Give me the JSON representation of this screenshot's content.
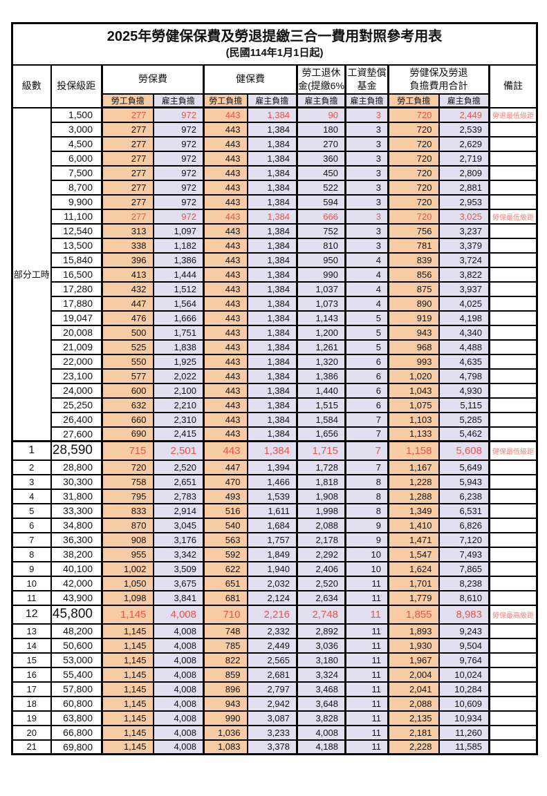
{
  "title": "2025年勞健保保費及勞退提繳三合一費用對照參考用表",
  "subtitle": "(民國114年1月1日起)",
  "colors": {
    "labor_bg": "#F7CBA3",
    "employer_bg": "#E1DFF0",
    "highlight_red": "#EE5349",
    "remark_red": "#F2837C",
    "border": "#000000"
  },
  "header": {
    "level": "級數",
    "bracket": "投保級距",
    "labor_ins": "勞保費",
    "health_ins": "健保費",
    "pension_line1": "勞工退休",
    "pension_line2": "金(提繳6%)",
    "wage_fund_line1": "工資墊償",
    "wage_fund_line2": "基金",
    "total_line1": "勞健保及勞退",
    "total_line2": "負擔費用合計",
    "remark": "備註",
    "labor_burden": "勞工負擔",
    "employer_burden": "雇主負擔"
  },
  "left_label": "部分工時",
  "rows": [
    {
      "c": [
        "",
        "1,500",
        "277",
        "972",
        "443",
        "1,384",
        "90",
        "3",
        "720",
        "2,449",
        "勞退最低級距"
      ],
      "f": "hl"
    },
    {
      "c": [
        "",
        "3,000",
        "277",
        "972",
        "443",
        "1,384",
        "180",
        "3",
        "720",
        "2,539",
        ""
      ],
      "f": ""
    },
    {
      "c": [
        "",
        "4,500",
        "277",
        "972",
        "443",
        "1,384",
        "270",
        "3",
        "720",
        "2,629",
        ""
      ],
      "f": ""
    },
    {
      "c": [
        "",
        "6,000",
        "277",
        "972",
        "443",
        "1,384",
        "360",
        "3",
        "720",
        "2,719",
        ""
      ],
      "f": ""
    },
    {
      "c": [
        "",
        "7,500",
        "277",
        "972",
        "443",
        "1,384",
        "450",
        "3",
        "720",
        "2,809",
        ""
      ],
      "f": ""
    },
    {
      "c": [
        "",
        "8,700",
        "277",
        "972",
        "443",
        "1,384",
        "522",
        "3",
        "720",
        "2,881",
        ""
      ],
      "f": ""
    },
    {
      "c": [
        "",
        "9,900",
        "277",
        "972",
        "443",
        "1,384",
        "594",
        "3",
        "720",
        "2,953",
        ""
      ],
      "f": ""
    },
    {
      "c": [
        "",
        "11,100",
        "277",
        "972",
        "443",
        "1,384",
        "666",
        "3",
        "720",
        "3,025",
        "勞保最低級距"
      ],
      "f": "hl"
    },
    {
      "c": [
        "",
        "12,540",
        "313",
        "1,097",
        "443",
        "1,384",
        "752",
        "3",
        "756",
        "3,237",
        ""
      ],
      "f": ""
    },
    {
      "c": [
        "",
        "13,500",
        "338",
        "1,182",
        "443",
        "1,384",
        "810",
        "3",
        "781",
        "3,379",
        ""
      ],
      "f": ""
    },
    {
      "c": [
        "",
        "15,840",
        "396",
        "1,386",
        "443",
        "1,384",
        "950",
        "4",
        "839",
        "3,724",
        ""
      ],
      "f": ""
    },
    {
      "c": [
        "",
        "16,500",
        "413",
        "1,444",
        "443",
        "1,384",
        "990",
        "4",
        "856",
        "3,822",
        ""
      ],
      "f": ""
    },
    {
      "c": [
        "",
        "17,280",
        "432",
        "1,512",
        "443",
        "1,384",
        "1,037",
        "4",
        "875",
        "3,937",
        ""
      ],
      "f": ""
    },
    {
      "c": [
        "",
        "17,880",
        "447",
        "1,564",
        "443",
        "1,384",
        "1,073",
        "4",
        "890",
        "4,025",
        ""
      ],
      "f": ""
    },
    {
      "c": [
        "",
        "19,047",
        "476",
        "1,666",
        "443",
        "1,384",
        "1,143",
        "5",
        "919",
        "4,198",
        ""
      ],
      "f": ""
    },
    {
      "c": [
        "",
        "20,008",
        "500",
        "1,751",
        "443",
        "1,384",
        "1,200",
        "5",
        "943",
        "4,340",
        ""
      ],
      "f": ""
    },
    {
      "c": [
        "",
        "21,009",
        "525",
        "1,838",
        "443",
        "1,384",
        "1,261",
        "5",
        "968",
        "4,488",
        ""
      ],
      "f": ""
    },
    {
      "c": [
        "",
        "22,000",
        "550",
        "1,925",
        "443",
        "1,384",
        "1,320",
        "6",
        "993",
        "4,635",
        ""
      ],
      "f": ""
    },
    {
      "c": [
        "",
        "23,100",
        "577",
        "2,022",
        "443",
        "1,384",
        "1,386",
        "6",
        "1,020",
        "4,798",
        ""
      ],
      "f": ""
    },
    {
      "c": [
        "",
        "24,000",
        "600",
        "2,100",
        "443",
        "1,384",
        "1,440",
        "6",
        "1,043",
        "4,930",
        ""
      ],
      "f": ""
    },
    {
      "c": [
        "",
        "25,250",
        "632",
        "2,210",
        "443",
        "1,384",
        "1,515",
        "6",
        "1,075",
        "5,115",
        ""
      ],
      "f": ""
    },
    {
      "c": [
        "",
        "26,400",
        "660",
        "2,310",
        "443",
        "1,384",
        "1,584",
        "7",
        "1,103",
        "5,285",
        ""
      ],
      "f": ""
    },
    {
      "c": [
        "",
        "27,600",
        "690",
        "2,415",
        "443",
        "1,384",
        "1,656",
        "7",
        "1,133",
        "5,462",
        ""
      ],
      "f": ""
    },
    {
      "c": [
        "1",
        "28,590",
        "715",
        "2,501",
        "443",
        "1,384",
        "1,715",
        "7",
        "1,158",
        "5,608",
        "健保最低級距"
      ],
      "f": "hl big thick"
    },
    {
      "c": [
        "2",
        "28,800",
        "720",
        "2,520",
        "447",
        "1,394",
        "1,728",
        "7",
        "1,167",
        "5,649",
        ""
      ],
      "f": ""
    },
    {
      "c": [
        "3",
        "30,300",
        "758",
        "2,651",
        "470",
        "1,466",
        "1,818",
        "8",
        "1,228",
        "5,943",
        ""
      ],
      "f": ""
    },
    {
      "c": [
        "4",
        "31,800",
        "795",
        "2,783",
        "493",
        "1,539",
        "1,908",
        "8",
        "1,288",
        "6,238",
        ""
      ],
      "f": ""
    },
    {
      "c": [
        "5",
        "33,300",
        "833",
        "2,914",
        "516",
        "1,611",
        "1,998",
        "8",
        "1,349",
        "6,531",
        ""
      ],
      "f": ""
    },
    {
      "c": [
        "6",
        "34,800",
        "870",
        "3,045",
        "540",
        "1,684",
        "2,088",
        "9",
        "1,410",
        "6,826",
        ""
      ],
      "f": ""
    },
    {
      "c": [
        "7",
        "36,300",
        "908",
        "3,176",
        "563",
        "1,757",
        "2,178",
        "9",
        "1,471",
        "7,120",
        ""
      ],
      "f": ""
    },
    {
      "c": [
        "8",
        "38,200",
        "955",
        "3,342",
        "592",
        "1,849",
        "2,292",
        "10",
        "1,547",
        "7,493",
        ""
      ],
      "f": ""
    },
    {
      "c": [
        "9",
        "40,100",
        "1,002",
        "3,509",
        "622",
        "1,940",
        "2,406",
        "10",
        "1,624",
        "7,865",
        ""
      ],
      "f": ""
    },
    {
      "c": [
        "10",
        "42,000",
        "1,050",
        "3,675",
        "651",
        "2,032",
        "2,520",
        "11",
        "1,701",
        "8,238",
        ""
      ],
      "f": ""
    },
    {
      "c": [
        "11",
        "43,900",
        "1,098",
        "3,841",
        "681",
        "2,124",
        "2,634",
        "11",
        "1,779",
        "8,610",
        ""
      ],
      "f": ""
    },
    {
      "c": [
        "12",
        "45,800",
        "1,145",
        "4,008",
        "710",
        "2,216",
        "2,748",
        "11",
        "1,855",
        "8,983",
        "勞保最高級距"
      ],
      "f": "hl big"
    },
    {
      "c": [
        "13",
        "48,200",
        "1,145",
        "4,008",
        "748",
        "2,332",
        "2,892",
        "11",
        "1,893",
        "9,243",
        ""
      ],
      "f": ""
    },
    {
      "c": [
        "14",
        "50,600",
        "1,145",
        "4,008",
        "785",
        "2,449",
        "3,036",
        "11",
        "1,930",
        "9,504",
        ""
      ],
      "f": ""
    },
    {
      "c": [
        "15",
        "53,000",
        "1,145",
        "4,008",
        "822",
        "2,565",
        "3,180",
        "11",
        "1,967",
        "9,764",
        ""
      ],
      "f": ""
    },
    {
      "c": [
        "16",
        "55,400",
        "1,145",
        "4,008",
        "859",
        "2,681",
        "3,324",
        "11",
        "2,004",
        "10,024",
        ""
      ],
      "f": ""
    },
    {
      "c": [
        "17",
        "57,800",
        "1,145",
        "4,008",
        "896",
        "2,797",
        "3,468",
        "11",
        "2,041",
        "10,284",
        ""
      ],
      "f": ""
    },
    {
      "c": [
        "18",
        "60,800",
        "1,145",
        "4,008",
        "943",
        "2,942",
        "3,648",
        "11",
        "2,088",
        "10,609",
        ""
      ],
      "f": ""
    },
    {
      "c": [
        "19",
        "63,800",
        "1,145",
        "4,008",
        "990",
        "3,087",
        "3,828",
        "11",
        "2,135",
        "10,934",
        ""
      ],
      "f": ""
    },
    {
      "c": [
        "20",
        "66,800",
        "1,145",
        "4,008",
        "1,036",
        "3,233",
        "4,008",
        "11",
        "2,181",
        "11,260",
        ""
      ],
      "f": ""
    },
    {
      "c": [
        "21",
        "69,800",
        "1,145",
        "4,008",
        "1,083",
        "3,378",
        "4,188",
        "11",
        "2,228",
        "11,585",
        ""
      ],
      "f": ""
    }
  ]
}
